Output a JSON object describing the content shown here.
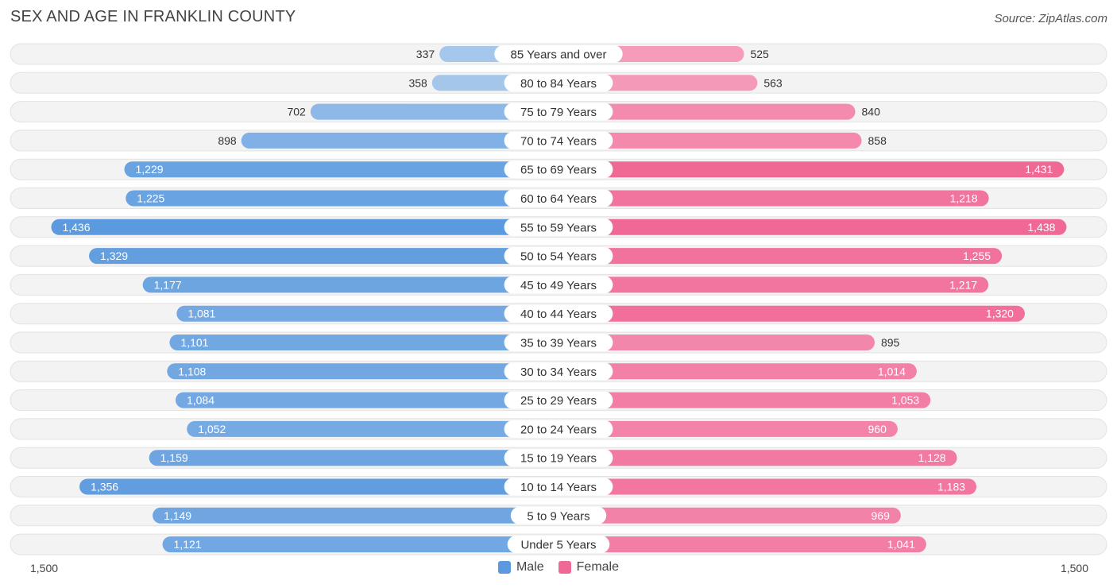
{
  "title": "SEX AND AGE IN FRANKLIN COUNTY",
  "source": "Source: ZipAtlas.com",
  "colors": {
    "male_light": "#a9c8ec",
    "male_dark": "#5b9ade",
    "female_light": "#f7a8c3",
    "female_dark": "#f06895"
  },
  "axis": {
    "left_label": "1,500",
    "right_label": "1,500"
  },
  "legend": {
    "male": "Male",
    "female": "Female"
  },
  "chart_data": {
    "type": "bar",
    "orientation": "horizontal-diverging",
    "title": "SEX AND AGE IN FRANKLIN COUNTY",
    "xlim": [
      -1500,
      1500
    ],
    "categories": [
      "85 Years and over",
      "80 to 84 Years",
      "75 to 79 Years",
      "70 to 74 Years",
      "65 to 69 Years",
      "60 to 64 Years",
      "55 to 59 Years",
      "50 to 54 Years",
      "45 to 49 Years",
      "40 to 44 Years",
      "35 to 39 Years",
      "30 to 34 Years",
      "25 to 29 Years",
      "20 to 24 Years",
      "15 to 19 Years",
      "10 to 14 Years",
      "5 to 9 Years",
      "Under 5 Years"
    ],
    "series": [
      {
        "name": "Male",
        "values": [
          337,
          358,
          702,
          898,
          1229,
          1225,
          1436,
          1329,
          1177,
          1081,
          1101,
          1108,
          1084,
          1052,
          1159,
          1356,
          1149,
          1121
        ],
        "labels": [
          "337",
          "358",
          "702",
          "898",
          "1,229",
          "1,225",
          "1,436",
          "1,329",
          "1,177",
          "1,081",
          "1,101",
          "1,108",
          "1,084",
          "1,052",
          "1,159",
          "1,356",
          "1,149",
          "1,121"
        ]
      },
      {
        "name": "Female",
        "values": [
          525,
          563,
          840,
          858,
          1431,
          1218,
          1438,
          1255,
          1217,
          1320,
          895,
          1014,
          1053,
          960,
          1128,
          1183,
          969,
          1041
        ],
        "labels": [
          "525",
          "563",
          "840",
          "858",
          "1,431",
          "1,218",
          "1,438",
          "1,255",
          "1,217",
          "1,320",
          "895",
          "1,014",
          "1,053",
          "960",
          "1,128",
          "1,183",
          "969",
          "1,041"
        ]
      }
    ],
    "legend_position": "bottom-center"
  }
}
